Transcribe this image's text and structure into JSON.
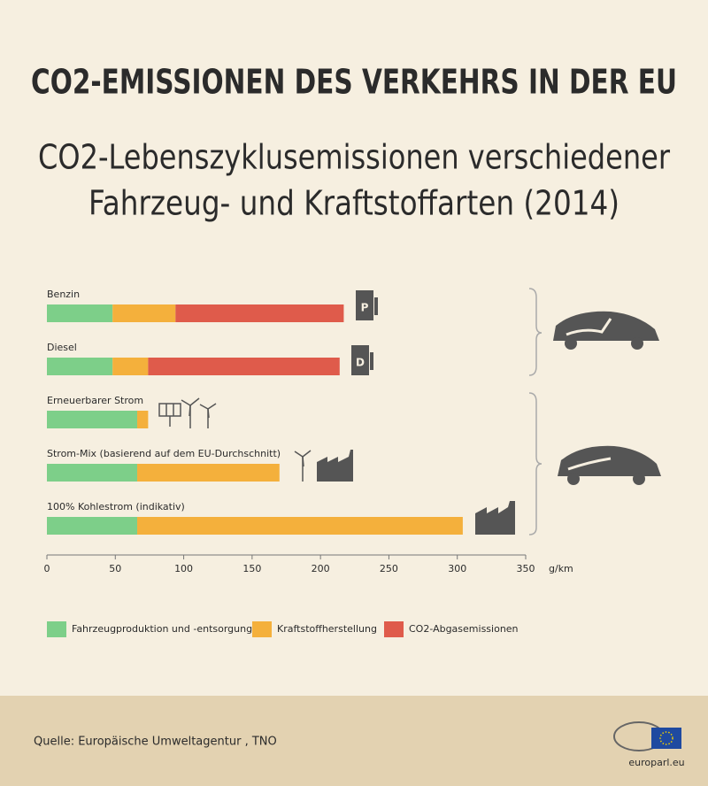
{
  "chart_data": {
    "type": "stacked-barh",
    "title": "CO2-EMISSIONEN DES VERKEHRS IN DER EU",
    "subtitle": [
      "CO2-Lebenszyklusemissionen verschiedener",
      "Fahrzeug- und Kraftstoffarten (2014)"
    ],
    "categories": [
      "Benzin",
      "Diesel",
      "Erneuerbarer Strom",
      "Strom-Mix (basierend auf dem EU-Durchschnitt)",
      "100% Kohlestrom (indikativ)"
    ],
    "series": [
      {
        "name": "Fahrzeugproduktion und -entsorgung",
        "color": "#7dcf89",
        "values": [
          48,
          48,
          66,
          66,
          66
        ]
      },
      {
        "name": "Kraftstoffherstellung",
        "color": "#f4b03c",
        "values": [
          46,
          26,
          8,
          104,
          238
        ]
      },
      {
        "name": "CO2-Abgasemissionen",
        "color": "#df5b4b",
        "values": [
          123,
          140,
          0,
          0,
          0
        ]
      }
    ],
    "xlim": [
      0,
      350
    ],
    "xticks": [
      0,
      50,
      100,
      150,
      200,
      250,
      300,
      350
    ],
    "x_unit": "g/km",
    "pump_labels": [
      "P",
      "D"
    ],
    "source": "Quelle: Europäische Umweltagentur , TNO",
    "logo_text": "europarl.eu"
  }
}
